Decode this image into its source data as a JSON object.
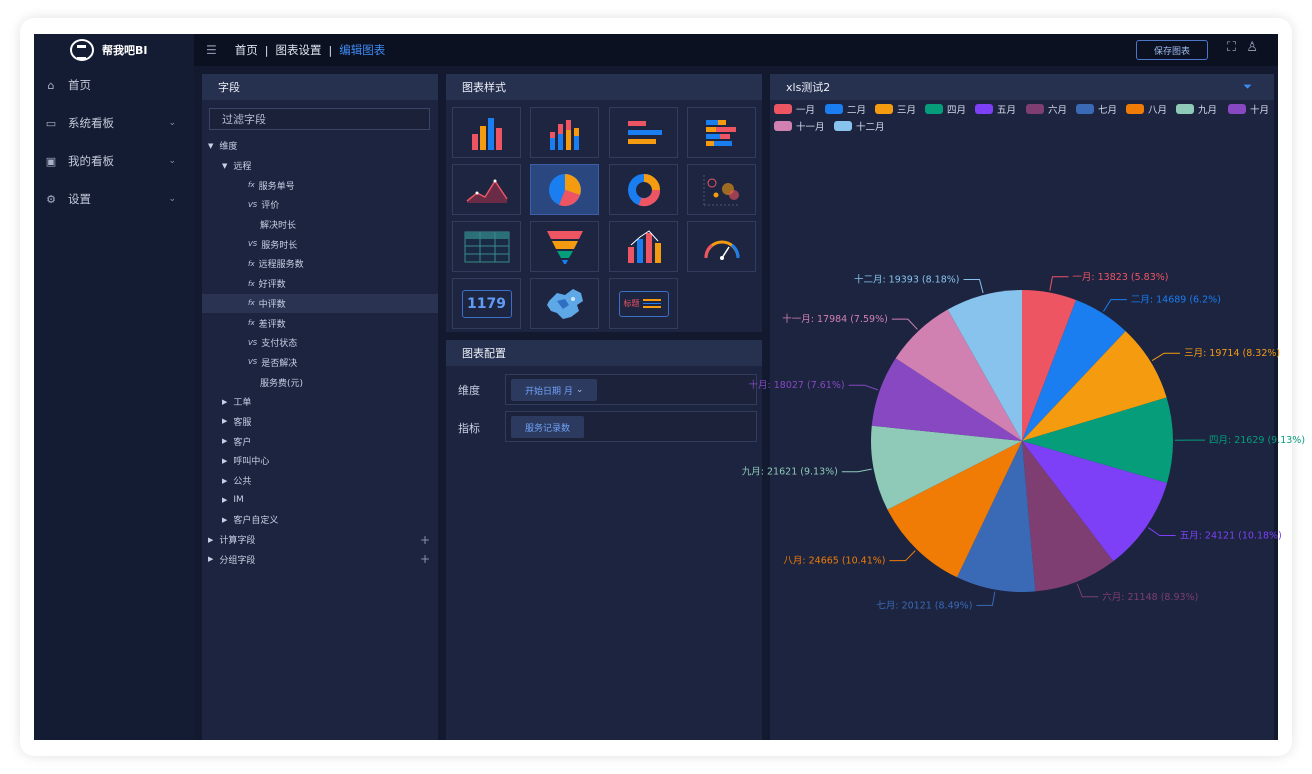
{
  "brand": {
    "name": "帮我吧BI"
  },
  "sidebar": {
    "items": [
      {
        "label": "首页",
        "icon": "home-icon"
      },
      {
        "label": "系统看板",
        "icon": "monitor-icon",
        "expandable": true
      },
      {
        "label": "我的看板",
        "icon": "image-icon",
        "expandable": true
      },
      {
        "label": "设置",
        "icon": "gear-icon",
        "expandable": true
      }
    ]
  },
  "topbar": {
    "breadcrumbs": [
      "首页",
      "图表设置",
      "编辑图表"
    ],
    "separator": "|",
    "save_label": "保存图表"
  },
  "fields_panel": {
    "title": "字段",
    "filter_placeholder": "过滤字段",
    "tree": [
      {
        "label": "维度",
        "level": 0,
        "toggle": "expanded"
      },
      {
        "label": "远程",
        "level": 1,
        "toggle": "expanded"
      },
      {
        "label": "服务单号",
        "level": 2,
        "type": "fx"
      },
      {
        "label": "评价",
        "level": 2,
        "type": "VS"
      },
      {
        "label": "解决时长",
        "level": 2,
        "type": ""
      },
      {
        "label": "服务时长",
        "level": 2,
        "type": "VS"
      },
      {
        "label": "远程服务数",
        "level": 2,
        "type": "fx"
      },
      {
        "label": "好评数",
        "level": 2,
        "type": "fx"
      },
      {
        "label": "中评数",
        "level": 2,
        "type": "fx",
        "highlighted": true
      },
      {
        "label": "差评数",
        "level": 2,
        "type": "fx"
      },
      {
        "label": "支付状态",
        "level": 2,
        "type": "VS"
      },
      {
        "label": "是否解决",
        "level": 2,
        "type": "VS"
      },
      {
        "label": "服务费(元)",
        "level": 2,
        "type": ""
      },
      {
        "label": "工单",
        "level": 1,
        "toggle": "collapsed"
      },
      {
        "label": "客服",
        "level": 1,
        "toggle": "collapsed"
      },
      {
        "label": "客户",
        "level": 1,
        "toggle": "collapsed"
      },
      {
        "label": "呼叫中心",
        "level": 1,
        "toggle": "collapsed"
      },
      {
        "label": "公共",
        "level": 1,
        "toggle": "collapsed"
      },
      {
        "label": "IM",
        "level": 1,
        "toggle": "collapsed"
      },
      {
        "label": "客户自定义",
        "level": 1,
        "toggle": "collapsed"
      },
      {
        "label": "计算字段",
        "level": 0,
        "toggle": "collapsed",
        "addable": true
      },
      {
        "label": "分组字段",
        "level": 0,
        "toggle": "collapsed",
        "addable": true
      }
    ]
  },
  "styles_panel": {
    "title": "图表样式",
    "types": [
      "bar-chart-icon",
      "stacked-bar-chart-icon",
      "horizontal-bar-chart-icon",
      "stacked-horizontal-bar-chart-icon",
      "area-line-chart-icon",
      "pie-chart-icon",
      "donut-chart-icon",
      "bubble-chart-icon",
      "table-chart-icon",
      "funnel-chart-icon",
      "combo-chart-icon",
      "gauge-chart-icon",
      "number-card-icon",
      "map-chart-icon",
      "text-card-icon"
    ],
    "selected": 5,
    "number_card_text": "1179",
    "text_card_text": "标题"
  },
  "config_panel": {
    "title": "图表配置",
    "dimension_label": "维度",
    "dimension_value": "开始日期 月",
    "metric_label": "指标",
    "metric_value": "服务记录数"
  },
  "chart_panel": {
    "title": "xls测试2"
  },
  "chart_data": {
    "type": "pie",
    "title": "xls测试2",
    "legend_position": "top",
    "series": [
      {
        "name": "一月",
        "value": 13823,
        "percent": "5.83%",
        "color": "#ee5563"
      },
      {
        "name": "二月",
        "value": 14689,
        "percent": "6.2%",
        "color": "#1a7df0"
      },
      {
        "name": "三月",
        "value": 19714,
        "percent": "8.32%",
        "color": "#f59b10"
      },
      {
        "name": "四月",
        "value": 21629,
        "percent": "9.13%",
        "color": "#069d7b"
      },
      {
        "name": "五月",
        "value": 24121,
        "percent": "10.18%",
        "color": "#7d40f6"
      },
      {
        "name": "六月",
        "value": 21148,
        "percent": "8.93%",
        "color": "#7e3e72"
      },
      {
        "name": "七月",
        "value": 20121,
        "percent": "8.49%",
        "color": "#3a6ab6"
      },
      {
        "name": "八月",
        "value": 24665,
        "percent": "10.41%",
        "color": "#f07b05"
      },
      {
        "name": "九月",
        "value": 21621,
        "percent": "9.13%",
        "color": "#8fc9b8"
      },
      {
        "name": "十月",
        "value": 18027,
        "percent": "7.61%",
        "color": "#8748c2"
      },
      {
        "name": "十一月",
        "value": 17984,
        "percent": "7.59%",
        "color": "#d180b2"
      },
      {
        "name": "十二月",
        "value": 19393,
        "percent": "8.18%",
        "color": "#87c3ec"
      }
    ]
  }
}
